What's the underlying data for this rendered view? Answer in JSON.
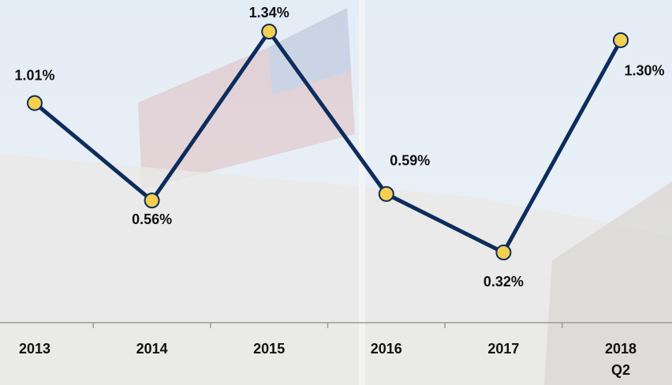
{
  "chart_data": {
    "type": "line",
    "categories": [
      "2013",
      "2014",
      "2015",
      "2016",
      "2017",
      "2018 Q2"
    ],
    "series": [
      {
        "color": "#0d2d5c",
        "values": [
          1.01,
          0.56,
          1.34,
          0.59,
          0.32,
          1.3
        ],
        "value_labels": [
          "1.01%",
          "0.56%",
          "1.34%",
          "0.59%",
          "0.32%",
          "1.30%"
        ]
      }
    ],
    "marker_color": "#f5cf4f"
  }
}
